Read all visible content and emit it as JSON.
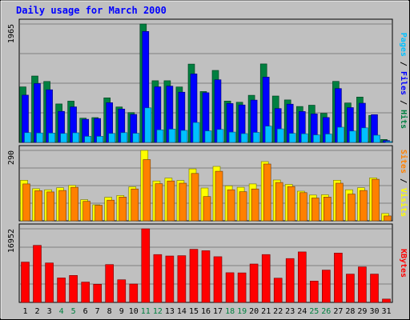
{
  "chart_data": {
    "type": "bar",
    "title": "Daily usage for March 2000",
    "categories": [
      "1",
      "2",
      "3",
      "4",
      "5",
      "6",
      "7",
      "8",
      "9",
      "10",
      "11",
      "12",
      "13",
      "14",
      "15",
      "16",
      "17",
      "18",
      "19",
      "20",
      "21",
      "22",
      "23",
      "24",
      "25",
      "26",
      "27",
      "28",
      "29",
      "30",
      "31"
    ],
    "weekend_days": [
      "4",
      "5",
      "11",
      "12",
      "18",
      "19",
      "25",
      "26"
    ],
    "panels": [
      {
        "id": "hits",
        "ymax": 1965,
        "ymax_label": "1965",
        "right_label": [
          {
            "text": "Pages",
            "color": "#00c0ff"
          },
          {
            "text": " / ",
            "color": "#000000"
          },
          {
            "text": "Files",
            "color": "#0000ff"
          },
          {
            "text": " / ",
            "color": "#000000"
          },
          {
            "text": "Hits",
            "color": "#008040"
          }
        ],
        "series": [
          {
            "name": "Hits",
            "color": "#008040",
            "values": [
              921,
              1102,
              1012,
              638,
              685,
              402,
              412,
              740,
              588,
              495,
              1965,
              1023,
              1023,
              920,
              1300,
              845,
              1195,
              687,
              667,
              782,
              1302,
              770,
              705,
              596,
              617,
              483,
              1013,
              654,
              753,
              447,
              49
            ]
          },
          {
            "name": "Files",
            "color": "#0000ff",
            "values": [
              785,
              977,
              874,
              515,
              589,
              384,
              397,
              658,
              554,
              465,
              1842,
              923,
              935,
              834,
              1137,
              824,
              1039,
              645,
              621,
              703,
              1083,
              562,
              634,
              512,
              473,
              413,
              894,
              578,
              650,
              461,
              30
            ]
          },
          {
            "name": "Pages",
            "color": "#00c0ff",
            "values": [
              162,
              157,
              156,
              149,
              159,
              101,
              101,
              149,
              162,
              151,
              574,
              208,
              221,
              199,
              330,
              191,
              215,
              171,
              146,
              166,
              270,
              224,
              150,
              143,
              125,
              139,
              252,
              188,
              242,
              119,
              15
            ]
          }
        ]
      },
      {
        "id": "visits",
        "ymax": 290,
        "ymax_label": "290",
        "right_label": [
          {
            "text": "Sites",
            "color": "#ff8000"
          },
          {
            "text": " / ",
            "color": "#000000"
          },
          {
            "text": "Visits",
            "color": "#ffff00"
          }
        ],
        "series": [
          {
            "name": "Visits",
            "color": "#ffff00",
            "values": [
              167,
              132,
              128,
              136,
              146,
              87,
              66,
              97,
              104,
              140,
              290,
              164,
              176,
              166,
              214,
              135,
              224,
              144,
              138,
              152,
              244,
              168,
              150,
              122,
              106,
              107,
              167,
              128,
              136,
              177,
              30
            ]
          },
          {
            "name": "Sites",
            "color": "#ff8000",
            "values": [
              152,
              124,
              119,
              125,
              138,
              80,
              64,
              85,
              98,
              131,
              252,
              153,
              164,
              155,
              195,
              100,
              204,
              128,
              120,
              131,
              234,
              158,
              141,
              116,
              94,
              98,
              155,
              110,
              125,
              171,
              20
            ]
          }
        ]
      },
      {
        "id": "kbytes",
        "ymax": 16952,
        "ymax_label": "16952",
        "right_label": [
          {
            "text": "KBytes",
            "color": "#ff0000"
          }
        ],
        "series": [
          {
            "name": "KBytes",
            "color": "#ff0000",
            "values": [
              9280,
              13138,
              9092,
              5640,
              6206,
              4672,
              4187,
              8712,
              5208,
              4233,
              16952,
              11014,
              10689,
              10753,
              12235,
              11906,
              10517,
              6839,
              6793,
              8850,
              11014,
              5591,
              10100,
              11629,
              4926,
              7446,
              11374,
              6530,
              8186,
              6530,
              770
            ]
          }
        ]
      }
    ]
  }
}
